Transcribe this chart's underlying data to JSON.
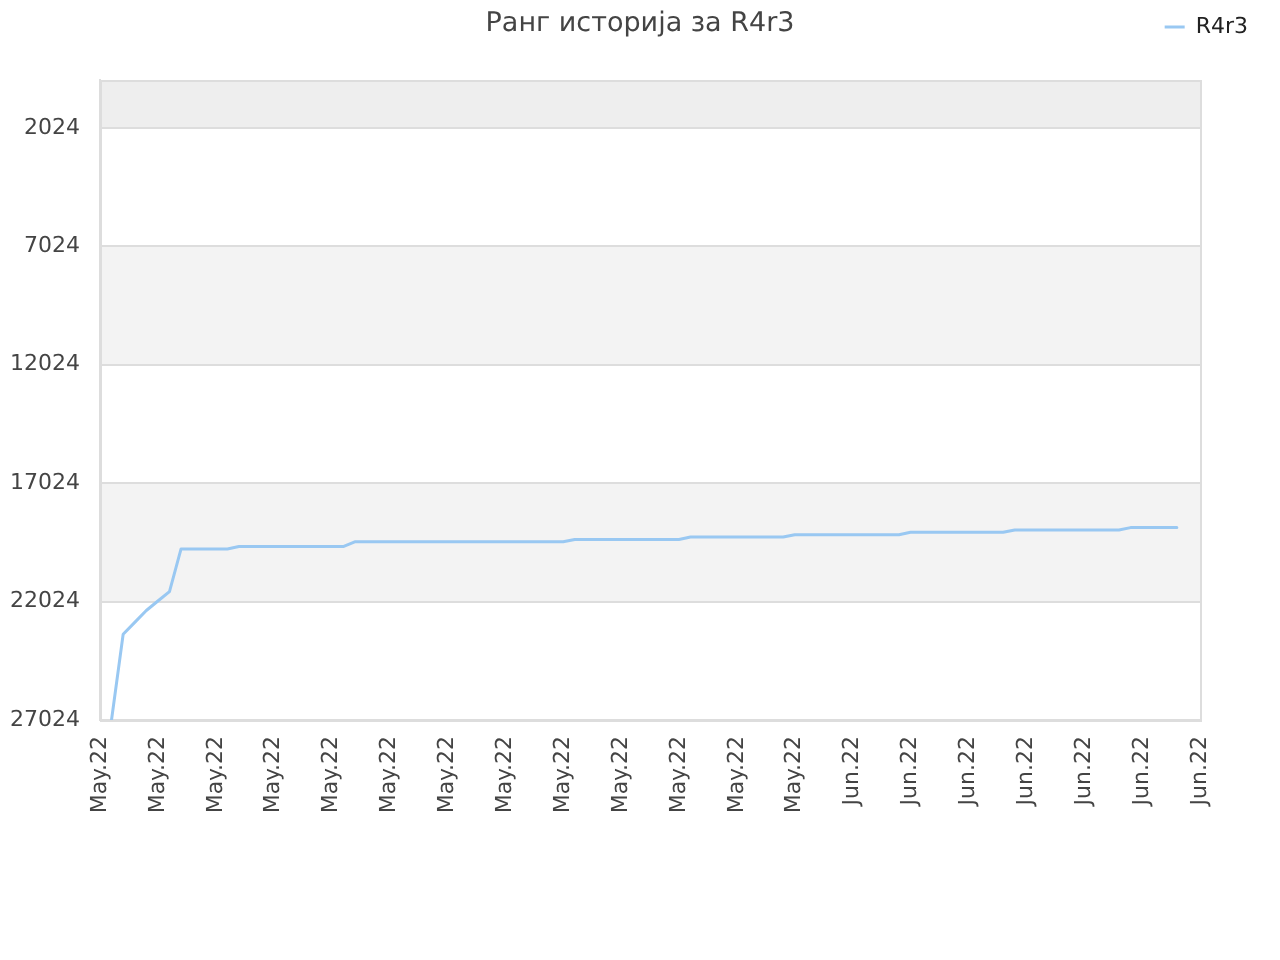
{
  "chart_data": {
    "type": "line",
    "title": "Ранг историја за R4r3",
    "categories": [
      "May.22",
      null,
      null,
      null,
      null,
      "May.22",
      null,
      null,
      null,
      null,
      "May.22",
      null,
      null,
      null,
      null,
      "May.22",
      null,
      null,
      null,
      null,
      "May.22",
      null,
      null,
      null,
      null,
      "May.22",
      null,
      null,
      null,
      null,
      "May.22",
      null,
      null,
      null,
      null,
      "May.22",
      null,
      null,
      null,
      null,
      "May.22",
      null,
      null,
      null,
      null,
      "May.22",
      null,
      null,
      null,
      null,
      "May.22",
      null,
      null,
      null,
      null,
      "May.22",
      null,
      null,
      null,
      null,
      "May.22",
      null,
      null,
      null,
      null,
      "Jun.22",
      null,
      null,
      null,
      null,
      "Jun.22",
      null,
      null,
      null,
      null,
      "Jun.22",
      null,
      null,
      null,
      null,
      "Jun.22",
      null,
      null,
      null,
      null,
      "Jun.22",
      null,
      null,
      null,
      null,
      "Jun.22",
      null,
      null,
      null,
      null,
      "Jun.22"
    ],
    "ylim": [
      27024,
      0
    ],
    "yticks": [
      2024,
      7024,
      12024,
      17024,
      22024,
      27024
    ],
    "grid": "y",
    "legend": "top right",
    "marker": "none",
    "line_style": "solid",
    "bands": [
      {
        "axis": "y",
        "from": 0,
        "to": 2024,
        "color": "#eeeeee"
      },
      {
        "axis": "y",
        "from": 7024,
        "to": 12024,
        "color": "#f3f3f3"
      },
      {
        "axis": "y",
        "from": 17024,
        "to": 22024,
        "color": "#f3f3f3"
      }
    ],
    "series": [
      {
        "name": "R4r3",
        "color": "#99c8f2",
        "values": [
          null,
          27000,
          23400,
          22900,
          22400,
          22000,
          21600,
          19800,
          19800,
          19800,
          19800,
          19800,
          19700,
          19700,
          19700,
          19700,
          19700,
          19700,
          19700,
          19700,
          19700,
          19700,
          19500,
          19500,
          19500,
          19500,
          19500,
          19500,
          19500,
          19500,
          19500,
          19500,
          19500,
          19500,
          19500,
          19500,
          19500,
          19500,
          19500,
          19500,
          19500,
          19400,
          19400,
          19400,
          19400,
          19400,
          19400,
          19400,
          19400,
          19400,
          19400,
          19300,
          19300,
          19300,
          19300,
          19300,
          19300,
          19300,
          19300,
          19300,
          19200,
          19200,
          19200,
          19200,
          19200,
          19200,
          19200,
          19200,
          19200,
          19200,
          19100,
          19100,
          19100,
          19100,
          19100,
          19100,
          19100,
          19100,
          19100,
          19000,
          19000,
          19000,
          19000,
          19000,
          19000,
          19000,
          19000,
          19000,
          19000,
          18900,
          18900,
          18900,
          18900,
          18900,
          null,
          null
        ]
      }
    ]
  }
}
